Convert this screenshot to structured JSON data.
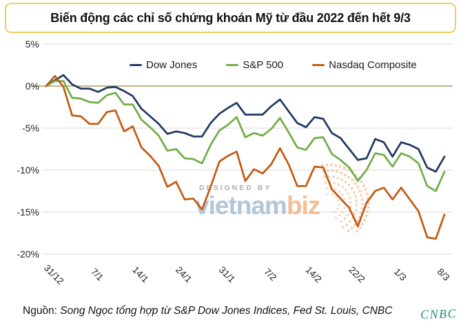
{
  "title": "Biến động các chỉ số chứng khoán Mỹ từ đầu 2022 đến hết 9/3",
  "watermark": {
    "designed_by": "DESIGNED BY",
    "brand_main": "vietnam",
    "brand_suffix": "biz"
  },
  "footer": {
    "source_label": "Nguồn:",
    "source_text": " Song Ngọc tổng hợp từ S&P Dow Jones Indices, Fed St. Louis, CNBC",
    "signature": "CNBC"
  },
  "colors": {
    "title_border": "#F2CC5B",
    "gridline": "#D9D9D9",
    "zero_line": "#9B8B44",
    "watermark_blue": "#B3C6D8",
    "watermark_orange": "#F2BE94",
    "signature_teal": "#1E8E74"
  },
  "chart_data": {
    "type": "line",
    "title": "Biến động các chỉ số chứng khoán Mỹ từ đầu 2022 đến hết 9/3",
    "xlabel": "",
    "ylabel": "",
    "ylim": [
      -20,
      5
    ],
    "grid": true,
    "legend_position": "top",
    "y_tick_labels": [
      "5%",
      "0%",
      "-5%",
      "-10%",
      "-15%",
      "-20%"
    ],
    "y_tick_values": [
      5,
      0,
      -5,
      -10,
      -15,
      -20
    ],
    "x_tick_labels": [
      "31/12",
      "7/1",
      "14/1",
      "24/1",
      "31/1",
      "7/2",
      "14/2",
      "22/2",
      "1/3",
      "8/3"
    ],
    "x_tick_indices": [
      0,
      5,
      10,
      15,
      20,
      25,
      30,
      35,
      40,
      45
    ],
    "series": [
      {
        "name": "Dow Jones",
        "color": "#1F3864",
        "values": [
          0,
          0.7,
          1.3,
          0.2,
          -0.3,
          -0.3,
          -0.7,
          -0.2,
          -0.1,
          -0.6,
          -1.2,
          -2.7,
          -3.6,
          -4.5,
          -5.7,
          -5.4,
          -5.6,
          -6,
          -6,
          -4.4,
          -3.3,
          -2.6,
          -2,
          -3.4,
          -3.4,
          -3.4,
          -2.4,
          -1.6,
          -3,
          -4.4,
          -4.9,
          -3.7,
          -3.9,
          -5.6,
          -6.2,
          -7.5,
          -8.8,
          -8.6,
          -6.3,
          -6.7,
          -8.4,
          -6.7,
          -7,
          -7.5,
          -9.7,
          -10.2,
          -8.4
        ]
      },
      {
        "name": "S&P 500",
        "color": "#70AD47",
        "values": [
          0,
          0.6,
          0.6,
          -1.4,
          -1.5,
          -1.9,
          -2,
          -1.1,
          -0.8,
          -2.2,
          -2.2,
          -4,
          -4.9,
          -5.9,
          -7.7,
          -7.5,
          -8.6,
          -8.7,
          -9.2,
          -7,
          -5.3,
          -4.6,
          -3.7,
          -6.1,
          -5.6,
          -5.9,
          -5.1,
          -3.8,
          -5.5,
          -7.3,
          -7.6,
          -6.2,
          -6.1,
          -8.1,
          -8.8,
          -9.7,
          -11.3,
          -10,
          -8,
          -8.2,
          -9.6,
          -8,
          -8.4,
          -9.2,
          -11.9,
          -12.5,
          -10.2
        ]
      },
      {
        "name": "Nasdaq Composite",
        "color": "#C55A11",
        "values": [
          0,
          1.2,
          -0.1,
          -3.5,
          -3.6,
          -4.5,
          -4.5,
          -3.1,
          -2.9,
          -5.4,
          -4.8,
          -7.3,
          -8.3,
          -9.5,
          -12,
          -11.4,
          -13.5,
          -13.4,
          -14.7,
          -12,
          -9,
          -8.3,
          -7.8,
          -11.3,
          -9.9,
          -10.4,
          -9.3,
          -7.4,
          -9.3,
          -11.9,
          -11.9,
          -9.6,
          -9.7,
          -12.3,
          -13.4,
          -14.5,
          -16.7,
          -13.9,
          -12.5,
          -12.1,
          -13.5,
          -12.1,
          -13.5,
          -14.9,
          -18,
          -18.2,
          -15.3
        ]
      }
    ]
  }
}
